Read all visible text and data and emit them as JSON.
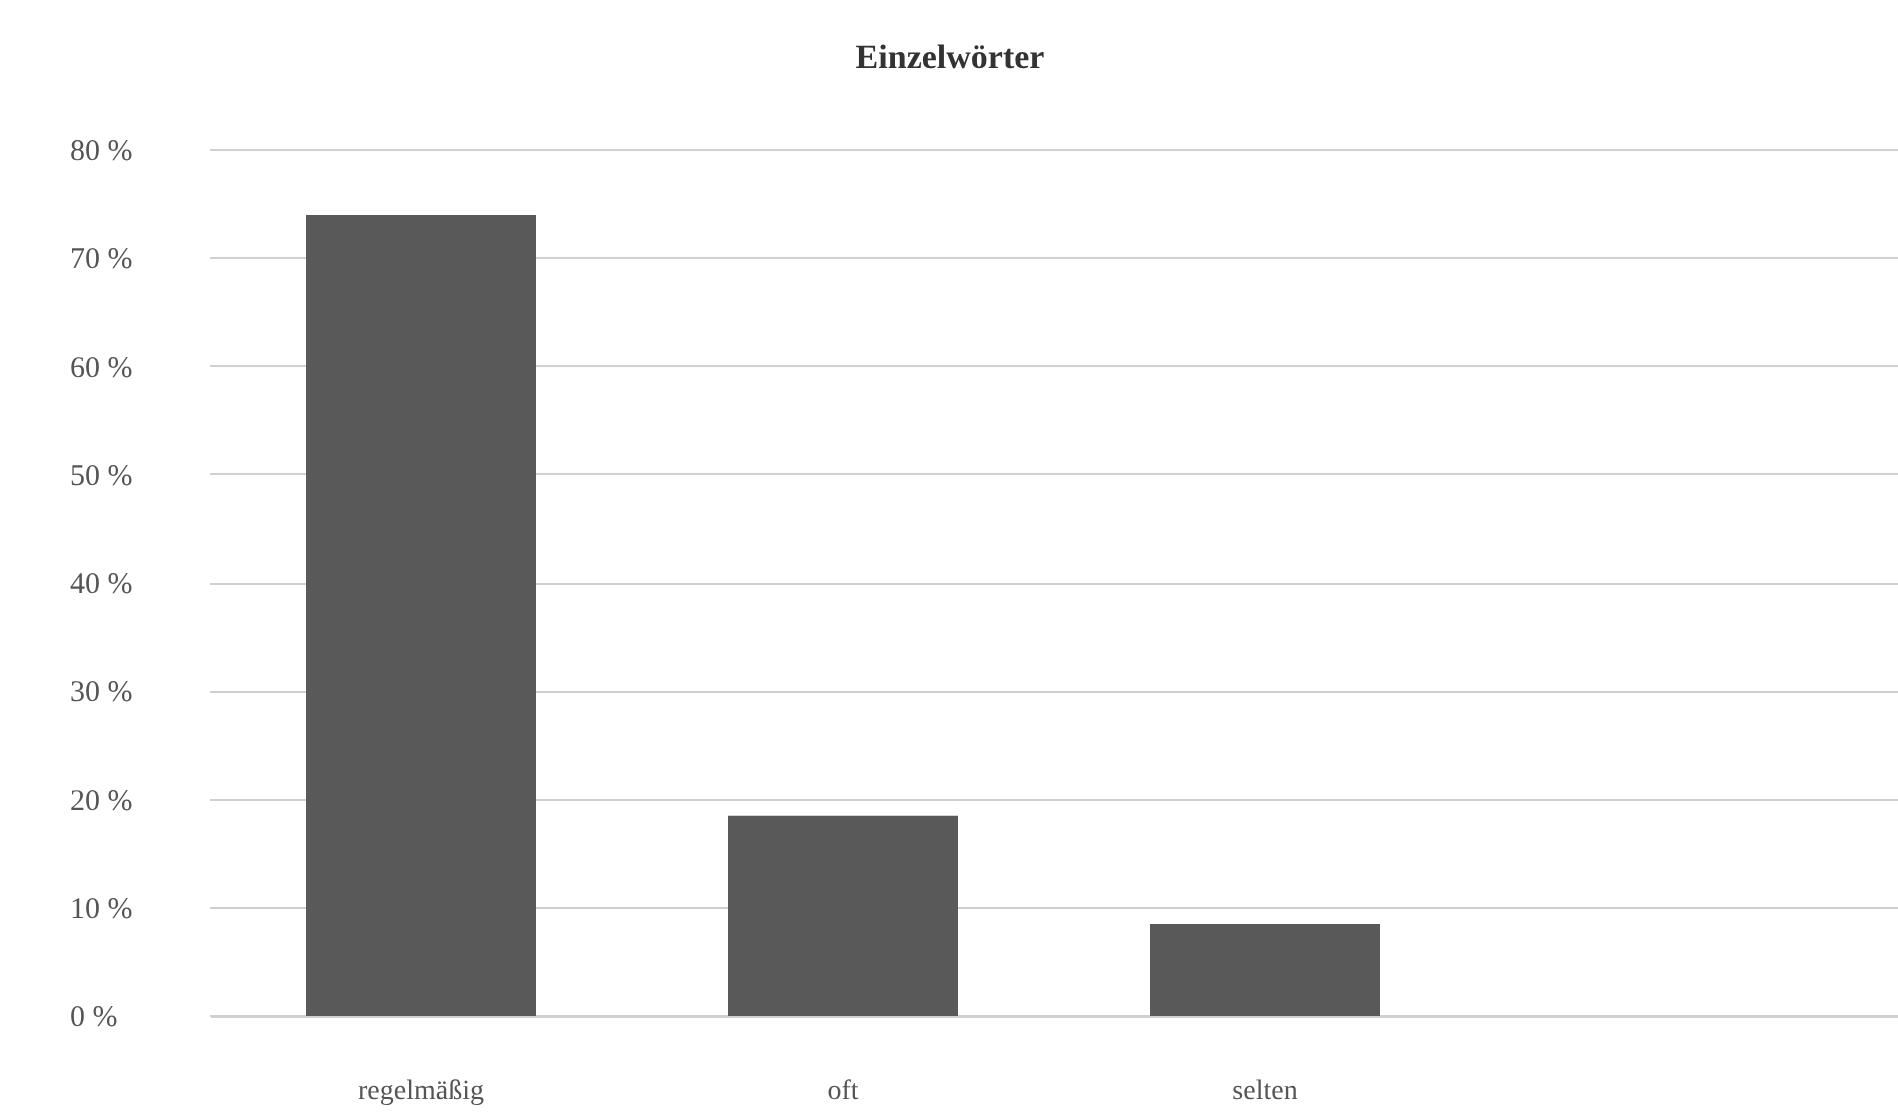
{
  "chart_data": {
    "type": "bar",
    "title": "Einzelwörter",
    "categories": [
      "regelmäßig",
      "oft",
      "selten",
      null
    ],
    "values": [
      74,
      18.5,
      8.5,
      null
    ],
    "color": "#595959",
    "ylim": [
      0,
      80
    ],
    "yticks": [
      {
        "value": 0,
        "label": "0 %"
      },
      {
        "value": 10,
        "label": "10 %"
      },
      {
        "value": 20,
        "label": "20 %"
      },
      {
        "value": 30,
        "label": "30 %"
      },
      {
        "value": 40,
        "label": "40 %"
      },
      {
        "value": 50,
        "label": "50 %"
      },
      {
        "value": 60,
        "label": "60 %"
      },
      {
        "value": 70,
        "label": "70 %"
      },
      {
        "value": 80,
        "label": "80 %"
      }
    ],
    "grid": "y"
  }
}
